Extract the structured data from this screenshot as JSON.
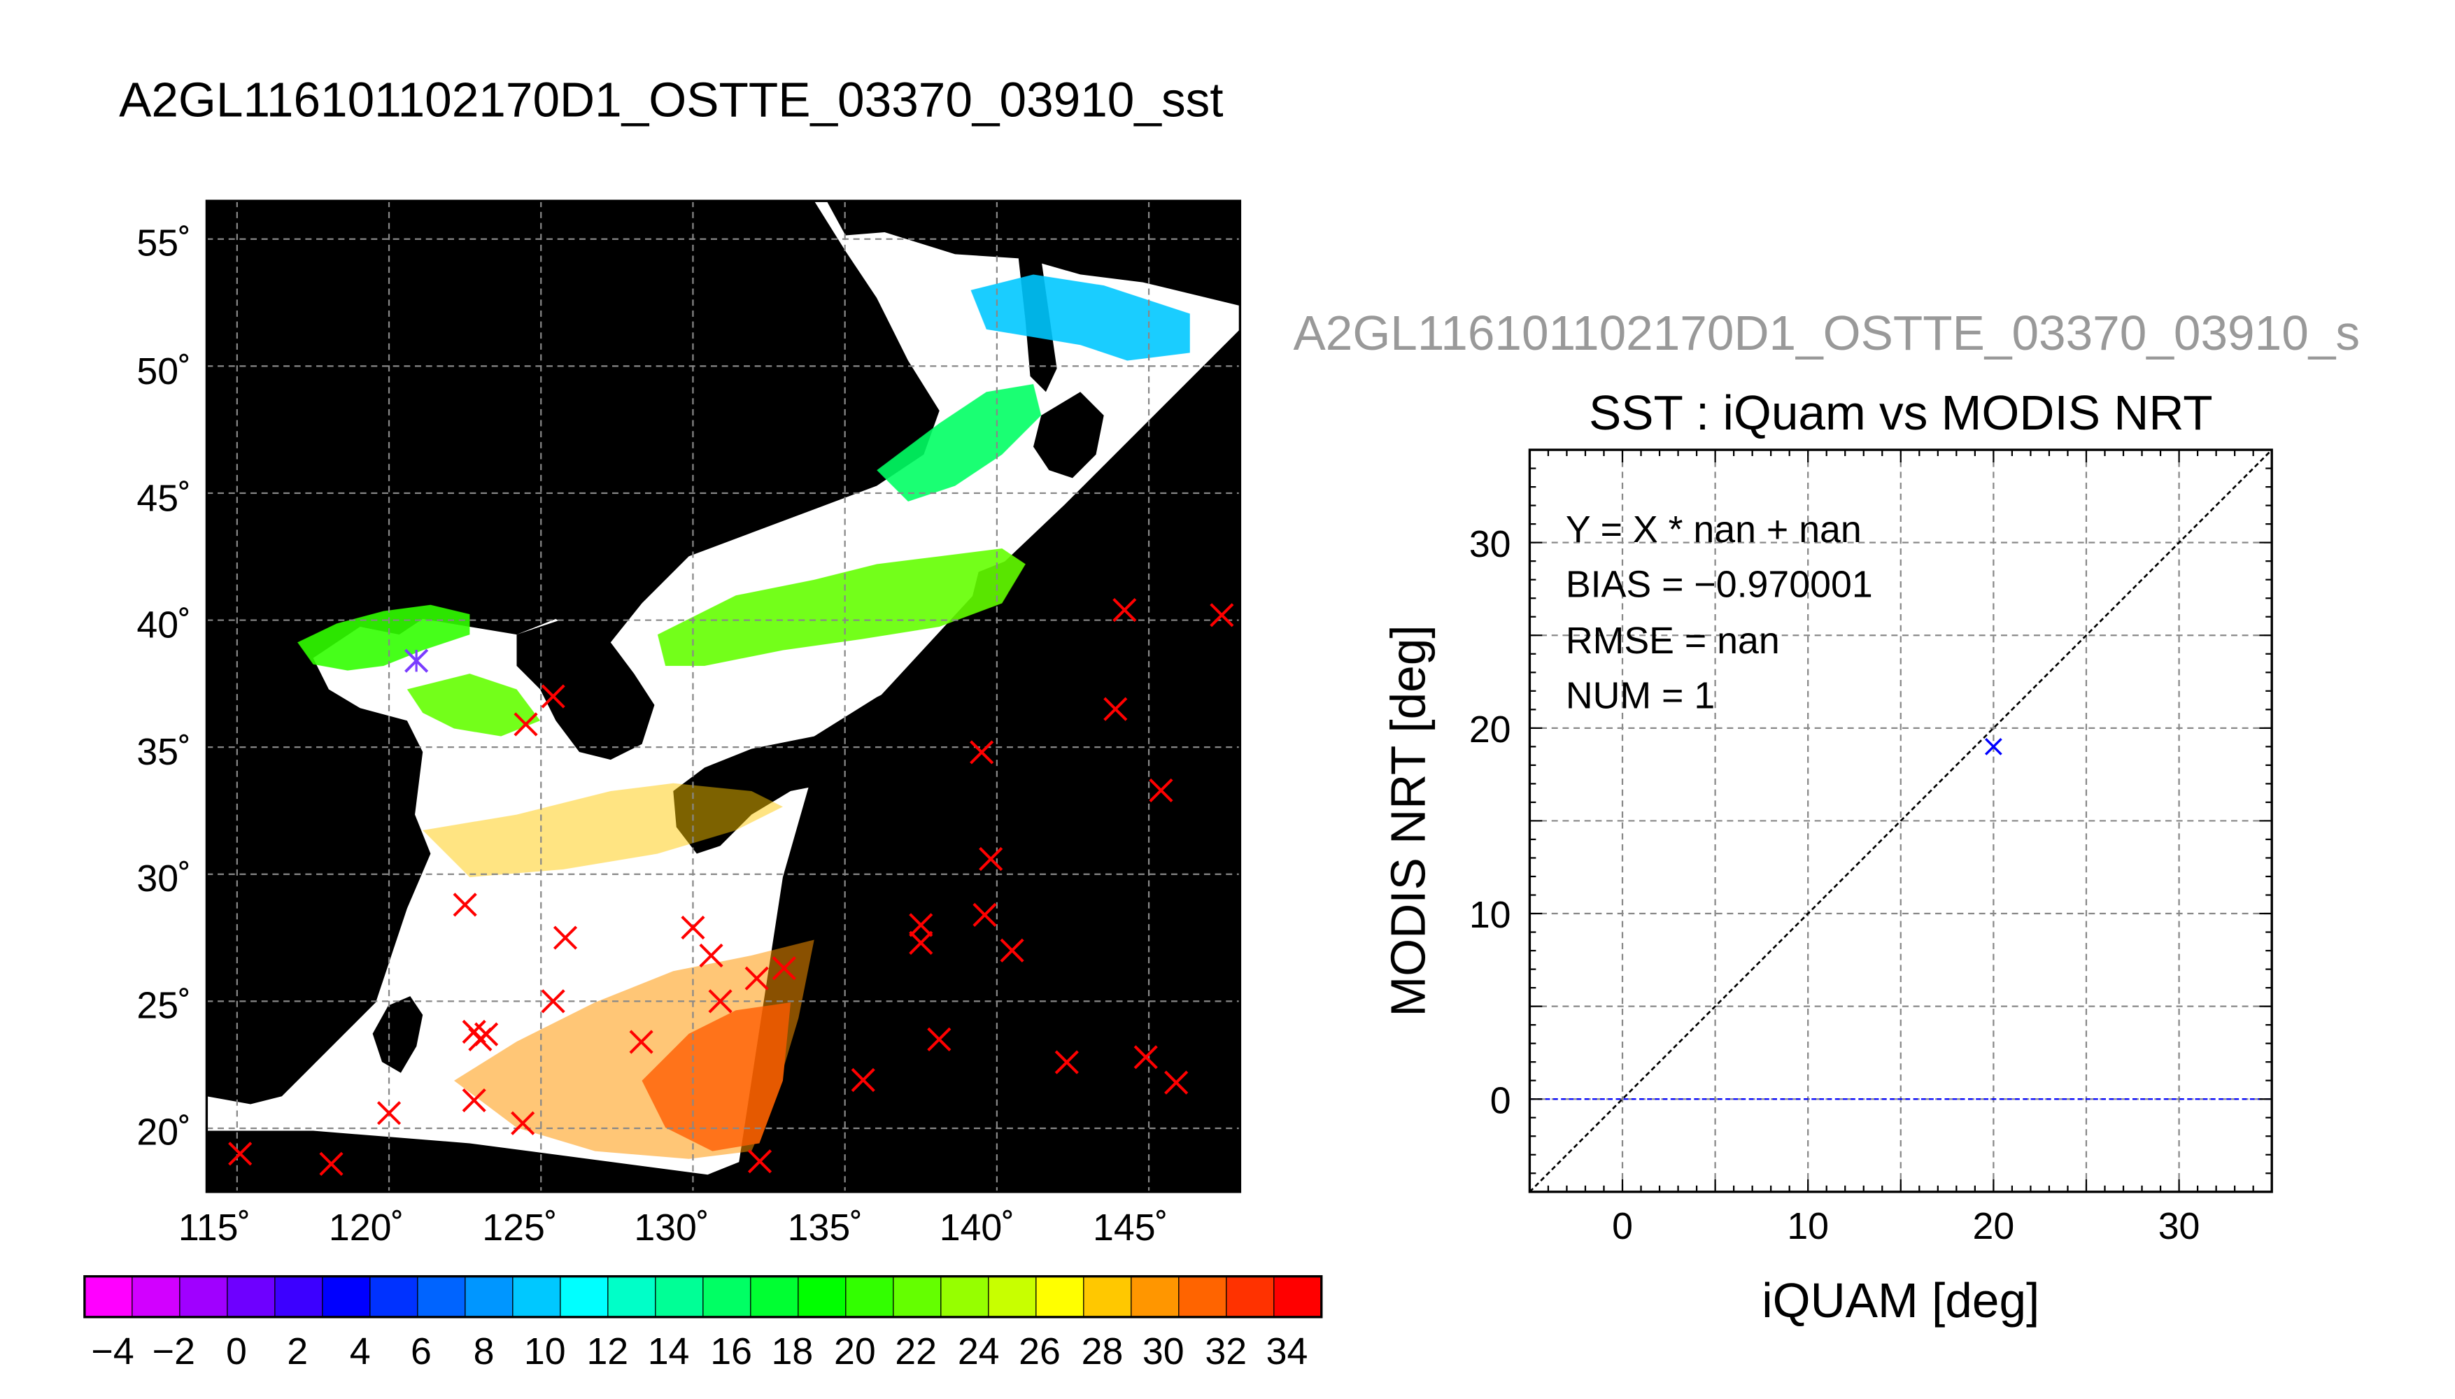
{
  "page_title": "A2GL116101102170D1_OSTTE_03370_03910_sst",
  "scatter_title_gray": "A2GL116101102170D1_OSTTE_03370_03910_s",
  "map": {
    "xticks": [
      "115˚",
      "120˚",
      "125˚",
      "130˚",
      "135˚",
      "140˚",
      "145˚"
    ],
    "yticks": [
      "55˚",
      "50˚",
      "45˚",
      "40˚",
      "35˚",
      "30˚",
      "25˚",
      "20˚"
    ],
    "colors": {
      "land": "#000000",
      "cloud": "#ffffff",
      "marker": "#ff0000"
    }
  },
  "colorbar": {
    "min": -5,
    "max": 35,
    "labels": [
      "−4",
      "−2",
      "0",
      "2",
      "4",
      "6",
      "8",
      "10",
      "12",
      "14",
      "16",
      "18",
      "20",
      "22",
      "24",
      "26",
      "28",
      "30",
      "32",
      "34"
    ],
    "colors": [
      "#ff00ff",
      "#d200ff",
      "#a000ff",
      "#6e00ff",
      "#3c00ff",
      "#0000ff",
      "#0032ff",
      "#0064ff",
      "#0096ff",
      "#00c8ff",
      "#00ffff",
      "#00ffc8",
      "#00ff96",
      "#00ff64",
      "#00ff32",
      "#00ff00",
      "#32ff00",
      "#64ff00",
      "#96ff00",
      "#c8ff00",
      "#ffff00",
      "#ffc800",
      "#ff9600",
      "#ff6400",
      "#ff3200",
      "#ff0000"
    ]
  },
  "chart_data": [
    {
      "type": "scatter",
      "title": "SST : iQuam vs MODIS NRT",
      "xlabel": "iQUAM [deg]",
      "ylabel": "MODIS NRT [deg]",
      "xlim": [
        -5,
        35
      ],
      "ylim": [
        -5,
        35
      ],
      "xticks": [
        0,
        10,
        20,
        30
      ],
      "yticks": [
        0,
        10,
        20,
        30
      ],
      "grid": true,
      "annotations": [
        "Y = X * nan + nan",
        "BIAS = −0.970001",
        "RMSE = nan",
        "NUM = 1"
      ],
      "points": [
        {
          "x": 20,
          "y": 19
        }
      ],
      "reference_lines": [
        "1:1 line",
        "y = 0"
      ],
      "colors": {
        "point": "#0000ff",
        "one_to_one": "#000000",
        "zero_line": "#0000ff"
      }
    },
    {
      "type": "scatter",
      "title": "",
      "xlim": [
        114,
        148
      ],
      "ylim": [
        17.5,
        56.5
      ],
      "grid": true,
      "points": [
        {
          "x": 115.1,
          "y": 19.0
        },
        {
          "x": 118.1,
          "y": 18.6
        },
        {
          "x": 120.0,
          "y": 20.6
        },
        {
          "x": 122.8,
          "y": 21.1
        },
        {
          "x": 124.4,
          "y": 20.2
        },
        {
          "x": 122.5,
          "y": 28.8
        },
        {
          "x": 122.8,
          "y": 23.8
        },
        {
          "x": 123.0,
          "y": 23.5
        },
        {
          "x": 123.2,
          "y": 23.7
        },
        {
          "x": 125.4,
          "y": 25.0
        },
        {
          "x": 125.8,
          "y": 27.5
        },
        {
          "x": 128.3,
          "y": 23.4
        },
        {
          "x": 130.0,
          "y": 27.9
        },
        {
          "x": 130.6,
          "y": 26.8
        },
        {
          "x": 130.9,
          "y": 25.0
        },
        {
          "x": 132.1,
          "y": 25.9
        },
        {
          "x": 133.0,
          "y": 26.3
        },
        {
          "x": 132.2,
          "y": 18.7
        },
        {
          "x": 135.6,
          "y": 21.9
        },
        {
          "x": 137.5,
          "y": 28.0
        },
        {
          "x": 137.5,
          "y": 27.3
        },
        {
          "x": 138.1,
          "y": 23.5
        },
        {
          "x": 139.5,
          "y": 34.8
        },
        {
          "x": 139.8,
          "y": 30.6
        },
        {
          "x": 139.6,
          "y": 28.4
        },
        {
          "x": 140.5,
          "y": 27.0
        },
        {
          "x": 142.3,
          "y": 22.6
        },
        {
          "x": 143.9,
          "y": 36.5
        },
        {
          "x": 144.2,
          "y": 40.4
        },
        {
          "x": 144.9,
          "y": 22.8
        },
        {
          "x": 145.4,
          "y": 33.3
        },
        {
          "x": 145.9,
          "y": 21.8
        },
        {
          "x": 147.4,
          "y": 40.2
        },
        {
          "x": 124.5,
          "y": 35.9
        },
        {
          "x": 125.4,
          "y": 37.0
        }
      ],
      "highlighted_points": [
        {
          "x": 120.9,
          "y": 38.4
        }
      ],
      "colors": {
        "point": "#ff0000",
        "highlighted_point": "#7a3cff"
      }
    }
  ]
}
